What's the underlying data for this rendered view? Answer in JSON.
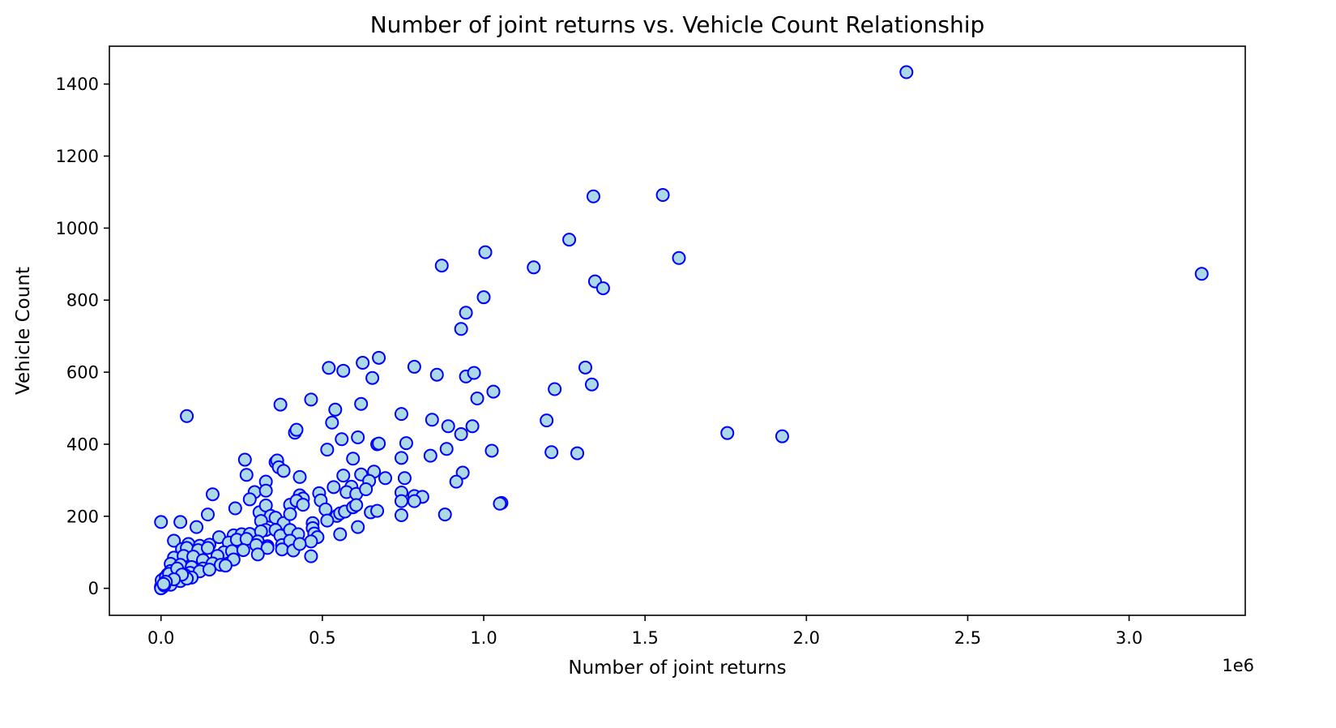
{
  "chart_data": {
    "type": "scatter",
    "title": "Number of joint returns vs. Vehicle Count Relationship",
    "xlabel": "Number of joint returns",
    "ylabel": "Vehicle Count",
    "x_offset_label": "1e6",
    "xlim": [
      -160000,
      3360000
    ],
    "ylim": [
      -75,
      1505
    ],
    "x_ticks": [
      0,
      500000,
      1000000,
      1500000,
      2000000,
      2500000,
      3000000
    ],
    "x_tick_labels": [
      "0.0",
      "0.5",
      "1.0",
      "1.5",
      "2.0",
      "2.5",
      "3.0"
    ],
    "y_ticks": [
      0,
      200,
      400,
      600,
      800,
      1000,
      1200,
      1400
    ],
    "y_tick_labels": [
      "0",
      "200",
      "400",
      "600",
      "800",
      "1000",
      "1200",
      "1400"
    ],
    "grid": false,
    "legend": "none",
    "marker": {
      "face_color": "#add8e6",
      "edge_color": "#0000ff",
      "shape": "circle"
    },
    "series": [
      {
        "points": [
          [
            2310000,
            1433
          ],
          [
            1555000,
            1092
          ],
          [
            1340000,
            1088
          ],
          [
            1265000,
            968
          ],
          [
            1005000,
            933
          ],
          [
            870000,
            896
          ],
          [
            1155000,
            891
          ],
          [
            1605000,
            917
          ],
          [
            3225000,
            873
          ],
          [
            1345000,
            852
          ],
          [
            1370000,
            833
          ],
          [
            1000000,
            808
          ],
          [
            945000,
            765
          ],
          [
            930000,
            720
          ],
          [
            675000,
            640
          ],
          [
            625000,
            626
          ],
          [
            520000,
            612
          ],
          [
            1315000,
            613
          ],
          [
            785000,
            615
          ],
          [
            565000,
            604
          ],
          [
            655000,
            584
          ],
          [
            855000,
            593
          ],
          [
            945000,
            588
          ],
          [
            970000,
            598
          ],
          [
            1335000,
            566
          ],
          [
            1030000,
            546
          ],
          [
            1220000,
            553
          ],
          [
            980000,
            527
          ],
          [
            465000,
            524
          ],
          [
            370000,
            510
          ],
          [
            620000,
            512
          ],
          [
            540000,
            496
          ],
          [
            745000,
            484
          ],
          [
            530000,
            460
          ],
          [
            840000,
            468
          ],
          [
            1195000,
            466
          ],
          [
            80000,
            478
          ],
          [
            890000,
            450
          ],
          [
            965000,
            450
          ],
          [
            415000,
            432
          ],
          [
            420000,
            440
          ],
          [
            560000,
            414
          ],
          [
            610000,
            419
          ],
          [
            930000,
            428
          ],
          [
            670000,
            400
          ],
          [
            675000,
            402
          ],
          [
            760000,
            403
          ],
          [
            515000,
            385
          ],
          [
            885000,
            387
          ],
          [
            1025000,
            382
          ],
          [
            1210000,
            378
          ],
          [
            1290000,
            375
          ],
          [
            1755000,
            431
          ],
          [
            1925000,
            422
          ],
          [
            595000,
            360
          ],
          [
            745000,
            362
          ],
          [
            835000,
            368
          ],
          [
            260000,
            357
          ],
          [
            355000,
            350
          ],
          [
            360000,
            355
          ],
          [
            365000,
            336
          ],
          [
            380000,
            326
          ],
          [
            265000,
            315
          ],
          [
            430000,
            309
          ],
          [
            565000,
            313
          ],
          [
            620000,
            316
          ],
          [
            660000,
            324
          ],
          [
            695000,
            306
          ],
          [
            755000,
            306
          ],
          [
            935000,
            321
          ],
          [
            325000,
            296
          ],
          [
            535000,
            281
          ],
          [
            590000,
            282
          ],
          [
            645000,
            298
          ],
          [
            915000,
            296
          ],
          [
            290000,
            267
          ],
          [
            325000,
            271
          ],
          [
            430000,
            258
          ],
          [
            440000,
            249
          ],
          [
            490000,
            264
          ],
          [
            575000,
            267
          ],
          [
            605000,
            262
          ],
          [
            635000,
            275
          ],
          [
            745000,
            266
          ],
          [
            785000,
            256
          ],
          [
            810000,
            254
          ],
          [
            160000,
            261
          ],
          [
            275000,
            247
          ],
          [
            305000,
            211
          ],
          [
            325000,
            230
          ],
          [
            340000,
            201
          ],
          [
            355000,
            196
          ],
          [
            400000,
            232
          ],
          [
            420000,
            243
          ],
          [
            440000,
            232
          ],
          [
            495000,
            244
          ],
          [
            510000,
            219
          ],
          [
            545000,
            201
          ],
          [
            555000,
            208
          ],
          [
            570000,
            213
          ],
          [
            595000,
            225
          ],
          [
            605000,
            231
          ],
          [
            650000,
            211
          ],
          [
            670000,
            215
          ],
          [
            745000,
            203
          ],
          [
            745000,
            242
          ],
          [
            785000,
            242
          ],
          [
            880000,
            205
          ],
          [
            1055000,
            237
          ],
          [
            1050000,
            235
          ],
          [
            0,
            184
          ],
          [
            60000,
            184
          ],
          [
            145000,
            205
          ],
          [
            230000,
            222
          ],
          [
            310000,
            187
          ],
          [
            325000,
            162
          ],
          [
            380000,
            181
          ],
          [
            400000,
            206
          ],
          [
            470000,
            181
          ],
          [
            470000,
            167
          ],
          [
            515000,
            188
          ],
          [
            610000,
            170
          ],
          [
            110000,
            170
          ],
          [
            225000,
            147
          ],
          [
            250000,
            150
          ],
          [
            275000,
            151
          ],
          [
            310000,
            158
          ],
          [
            355000,
            162
          ],
          [
            370000,
            146
          ],
          [
            400000,
            162
          ],
          [
            425000,
            150
          ],
          [
            475000,
            152
          ],
          [
            485000,
            142
          ],
          [
            555000,
            150
          ],
          [
            40000,
            132
          ],
          [
            85000,
            123
          ],
          [
            120000,
            118
          ],
          [
            150000,
            121
          ],
          [
            180000,
            142
          ],
          [
            210000,
            127
          ],
          [
            235000,
            135
          ],
          [
            265000,
            137
          ],
          [
            300000,
            130
          ],
          [
            330000,
            117
          ],
          [
            375000,
            120
          ],
          [
            400000,
            132
          ],
          [
            465000,
            130
          ],
          [
            65000,
            109
          ],
          [
            80000,
            112
          ],
          [
            115000,
            106
          ],
          [
            145000,
            112
          ],
          [
            195000,
            100
          ],
          [
            220000,
            103
          ],
          [
            255000,
            106
          ],
          [
            295000,
            120
          ],
          [
            330000,
            112
          ],
          [
            375000,
            108
          ],
          [
            410000,
            105
          ],
          [
            430000,
            123
          ],
          [
            40000,
            85
          ],
          [
            70000,
            90
          ],
          [
            100000,
            88
          ],
          [
            130000,
            78
          ],
          [
            175000,
            90
          ],
          [
            225000,
            80
          ],
          [
            300000,
            94
          ],
          [
            465000,
            89
          ],
          [
            30000,
            68
          ],
          [
            60000,
            65
          ],
          [
            95000,
            59
          ],
          [
            130000,
            55
          ],
          [
            160000,
            69
          ],
          [
            185000,
            65
          ],
          [
            200000,
            63
          ],
          [
            30000,
            48
          ],
          [
            55000,
            47
          ],
          [
            90000,
            43
          ],
          [
            120000,
            47
          ],
          [
            150000,
            52
          ],
          [
            20000,
            38
          ],
          [
            45000,
            30
          ],
          [
            75000,
            36
          ],
          [
            95000,
            30
          ],
          [
            10000,
            28
          ],
          [
            35000,
            20
          ],
          [
            60000,
            20
          ],
          [
            80000,
            27
          ],
          [
            5000,
            15
          ],
          [
            20000,
            12
          ],
          [
            30000,
            10
          ],
          [
            0,
            5
          ],
          [
            0,
            2
          ],
          [
            5000,
            3
          ],
          [
            0,
            0
          ],
          [
            10000,
            8
          ],
          [
            2000,
            22
          ],
          [
            15000,
            30
          ],
          [
            25000,
            40
          ],
          [
            50000,
            55
          ],
          [
            65000,
            38
          ],
          [
            40000,
            25
          ],
          [
            15000,
            18
          ],
          [
            8000,
            12
          ]
        ]
      }
    ]
  }
}
